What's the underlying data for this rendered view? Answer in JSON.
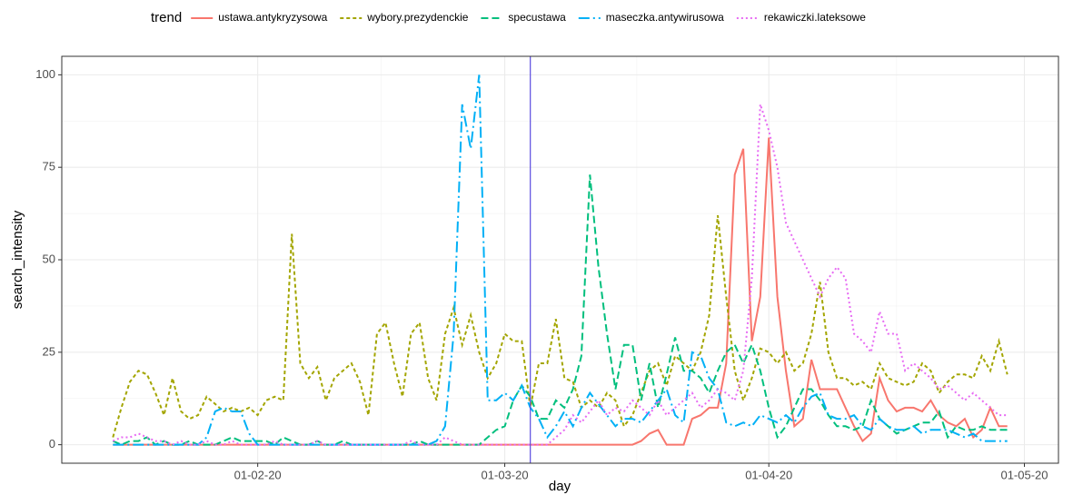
{
  "chart_data": {
    "type": "line",
    "legend_title": "trend",
    "x_label": "day",
    "y_label": "search_intensity",
    "x": [
      "2020-01-15",
      "2020-01-16",
      "2020-01-17",
      "2020-01-18",
      "2020-01-19",
      "2020-01-20",
      "2020-01-21",
      "2020-01-22",
      "2020-01-23",
      "2020-01-24",
      "2020-01-25",
      "2020-01-26",
      "2020-01-27",
      "2020-01-28",
      "2020-01-29",
      "2020-01-30",
      "2020-01-31",
      "2020-02-01",
      "2020-02-02",
      "2020-02-03",
      "2020-02-04",
      "2020-02-05",
      "2020-02-06",
      "2020-02-07",
      "2020-02-08",
      "2020-02-09",
      "2020-02-10",
      "2020-02-11",
      "2020-02-12",
      "2020-02-13",
      "2020-02-14",
      "2020-02-15",
      "2020-02-16",
      "2020-02-17",
      "2020-02-18",
      "2020-02-19",
      "2020-02-20",
      "2020-02-21",
      "2020-02-22",
      "2020-02-23",
      "2020-02-24",
      "2020-02-25",
      "2020-02-26",
      "2020-02-27",
      "2020-02-28",
      "2020-02-29",
      "2020-03-01",
      "2020-03-02",
      "2020-03-03",
      "2020-03-04",
      "2020-03-05",
      "2020-03-06",
      "2020-03-07",
      "2020-03-08",
      "2020-03-09",
      "2020-03-10",
      "2020-03-11",
      "2020-03-12",
      "2020-03-13",
      "2020-03-14",
      "2020-03-15",
      "2020-03-16",
      "2020-03-17",
      "2020-03-18",
      "2020-03-19",
      "2020-03-20",
      "2020-03-21",
      "2020-03-22",
      "2020-03-23",
      "2020-03-24",
      "2020-03-25",
      "2020-03-26",
      "2020-03-27",
      "2020-03-28",
      "2020-03-29",
      "2020-03-30",
      "2020-03-31",
      "2020-04-01",
      "2020-04-02",
      "2020-04-03",
      "2020-04-04",
      "2020-04-05",
      "2020-04-06",
      "2020-04-07",
      "2020-04-08",
      "2020-04-09",
      "2020-04-10",
      "2020-04-11",
      "2020-04-12",
      "2020-04-13",
      "2020-04-14",
      "2020-04-15",
      "2020-04-16",
      "2020-04-17",
      "2020-04-18",
      "2020-04-19",
      "2020-04-20",
      "2020-04-21",
      "2020-04-22",
      "2020-04-23",
      "2020-04-24",
      "2020-04-25",
      "2020-04-26",
      "2020-04-27",
      "2020-04-28",
      "2020-04-29"
    ],
    "series": [
      {
        "name": "ustawa.antykryzysowa",
        "color": "#F8766D",
        "dash": "none",
        "values": [
          0,
          0,
          0,
          0,
          0,
          0,
          0,
          0,
          0,
          0,
          0,
          0,
          0,
          0,
          0,
          0,
          0,
          0,
          0,
          0,
          0,
          0,
          0,
          0,
          0,
          0,
          0,
          0,
          0,
          0,
          0,
          0,
          0,
          0,
          0,
          0,
          0,
          0,
          0,
          0,
          0,
          0,
          0,
          0,
          0,
          0,
          0,
          0,
          0,
          0,
          0,
          0,
          0,
          0,
          0,
          0,
          0,
          0,
          0,
          0,
          0,
          0,
          1,
          3,
          4,
          0,
          0,
          0,
          7,
          8,
          10,
          10,
          22,
          73,
          80,
          28,
          40,
          83,
          40,
          20,
          5,
          7,
          23,
          15,
          15,
          15,
          10,
          5,
          1,
          3,
          18,
          12,
          9,
          10,
          10,
          9,
          12,
          8,
          6,
          5,
          7,
          2,
          4,
          10,
          5,
          5
        ]
      },
      {
        "name": "wybory.prezydenckie",
        "color": "#A3A500",
        "dash": "4 3",
        "values": [
          2,
          10,
          17,
          20,
          19,
          14,
          8,
          18,
          9,
          7,
          8,
          13,
          11,
          9,
          10,
          9,
          10,
          8,
          12,
          13,
          12,
          57,
          22,
          18,
          21,
          12,
          18,
          20,
          22,
          17,
          8,
          30,
          33,
          22,
          13,
          30,
          33,
          18,
          12,
          30,
          37,
          27,
          35,
          25,
          18,
          22,
          30,
          28,
          28,
          10,
          22,
          22,
          34,
          18,
          17,
          10,
          12,
          10,
          14,
          12,
          5,
          8,
          14,
          20,
          22,
          16,
          24,
          22,
          20,
          25,
          35,
          62,
          40,
          20,
          12,
          18,
          26,
          25,
          22,
          25,
          20,
          22,
          30,
          44,
          25,
          18,
          18,
          16,
          17,
          15,
          22,
          18,
          17,
          16,
          17,
          22,
          20,
          14,
          17,
          19,
          19,
          18,
          24,
          20,
          28,
          19
        ]
      },
      {
        "name": "specustawa",
        "color": "#00BF7D",
        "dash": "8 4",
        "values": [
          1,
          0,
          1,
          1,
          2,
          0,
          1,
          0,
          0,
          1,
          0,
          0,
          0,
          1,
          2,
          1,
          1,
          1,
          1,
          0,
          2,
          1,
          0,
          0,
          1,
          0,
          0,
          1,
          0,
          0,
          0,
          0,
          0,
          0,
          0,
          0,
          1,
          0,
          0,
          0,
          0,
          0,
          0,
          0,
          2,
          4,
          5,
          12,
          16,
          13,
          7,
          7,
          12,
          10,
          15,
          24,
          73,
          48,
          30,
          15,
          27,
          27,
          12,
          22,
          10,
          19,
          29,
          20,
          20,
          18,
          14,
          20,
          25,
          27,
          22,
          27,
          20,
          10,
          2,
          5,
          10,
          15,
          15,
          12,
          8,
          5,
          5,
          4,
          5,
          12,
          7,
          5,
          3,
          4,
          5,
          6,
          6,
          9,
          2,
          5,
          4,
          4,
          5,
          4,
          4,
          4
        ]
      },
      {
        "name": "maseczka.antywirusowa",
        "color": "#00B0F6",
        "dash": "12 4 2 4",
        "values": [
          0,
          0,
          0,
          0,
          0,
          0,
          0,
          0,
          0,
          0,
          0,
          2,
          9,
          10,
          9,
          9,
          3,
          0,
          0,
          0,
          0,
          0,
          0,
          0,
          0,
          0,
          0,
          0,
          0,
          0,
          0,
          0,
          0,
          0,
          0,
          0,
          0,
          0,
          1,
          5,
          30,
          92,
          80,
          100,
          12,
          12,
          14,
          12,
          16,
          10,
          7,
          2,
          5,
          9,
          5,
          10,
          14,
          11,
          8,
          5,
          7,
          7,
          6,
          9,
          12,
          15,
          8,
          6,
          25,
          24,
          18,
          15,
          6,
          5,
          6,
          5,
          8,
          7,
          6,
          8,
          6,
          10,
          13,
          14,
          8,
          7,
          7,
          8,
          5,
          4,
          7,
          5,
          4,
          4,
          5,
          3,
          4,
          4,
          4,
          3,
          2,
          3,
          1,
          1,
          1,
          1
        ]
      },
      {
        "name": "rekawiczki.lateksowe",
        "color": "#E76BF3",
        "dash": "2 3",
        "values": [
          1,
          2,
          2,
          3,
          2,
          1,
          1,
          0,
          1,
          0,
          0,
          1,
          0,
          0,
          1,
          0,
          0,
          0,
          0,
          1,
          0,
          0,
          0,
          0,
          1,
          0,
          0,
          0,
          0,
          0,
          0,
          0,
          0,
          0,
          0,
          1,
          0,
          0,
          0,
          2,
          1,
          0,
          0,
          0,
          0,
          0,
          0,
          0,
          0,
          0,
          0,
          0,
          2,
          4,
          8,
          6,
          9,
          12,
          8,
          10,
          9,
          12,
          10,
          8,
          12,
          8,
          10,
          12,
          14,
          10,
          12,
          15,
          14,
          12,
          20,
          45,
          92,
          85,
          75,
          60,
          55,
          50,
          45,
          40,
          45,
          48,
          45,
          30,
          28,
          25,
          36,
          30,
          30,
          20,
          22,
          20,
          18,
          15,
          16,
          14,
          12,
          14,
          12,
          10,
          8,
          8
        ]
      }
    ],
    "vline": "2020-03-04",
    "vline_color": "#5B4BE0",
    "xlim": [
      "2020-01-09",
      "2020-05-05"
    ],
    "xticks": [
      {
        "value": "2020-02-01",
        "label": "01-02-20"
      },
      {
        "value": "2020-03-01",
        "label": "01-03-20"
      },
      {
        "value": "2020-04-01",
        "label": "01-04-20"
      },
      {
        "value": "2020-05-01",
        "label": "01-05-20"
      }
    ],
    "ylim": [
      -5,
      105
    ],
    "yticks": [
      0,
      25,
      50,
      75,
      100
    ],
    "grid": true,
    "legend_position": "top"
  }
}
